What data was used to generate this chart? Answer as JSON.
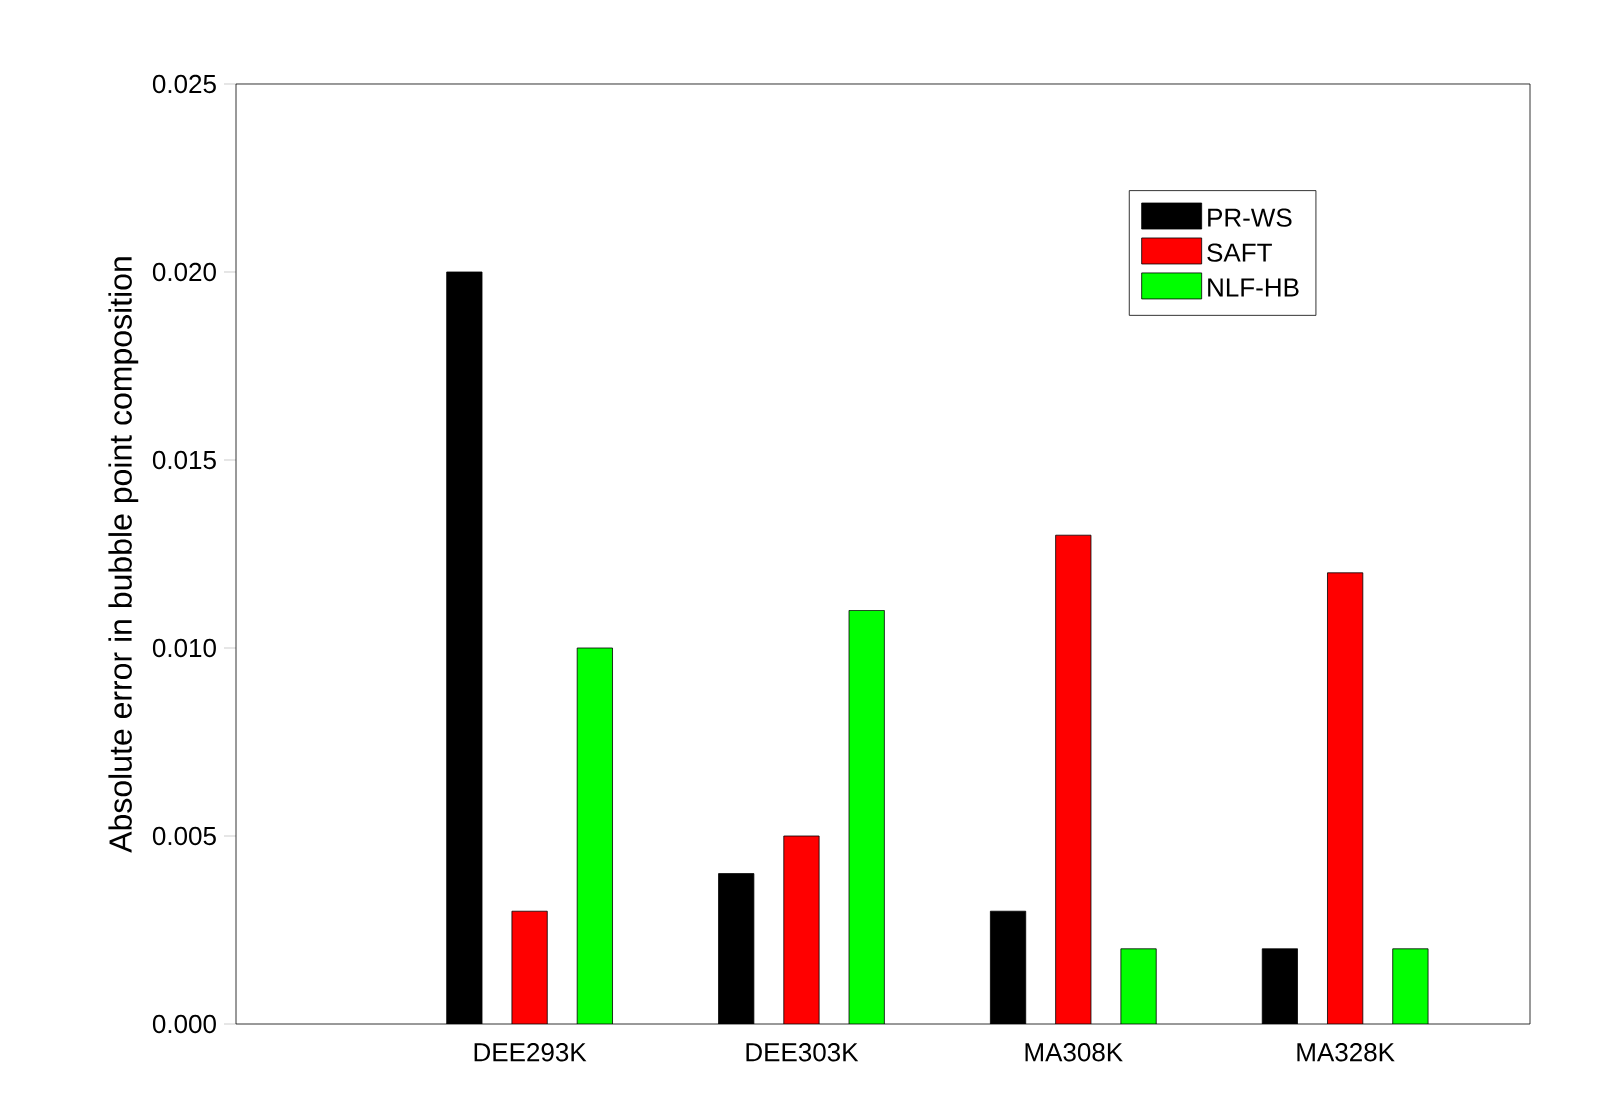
{
  "chart_data": {
    "type": "bar",
    "ylabel": "Absolute error in bubble point composition",
    "categories": [
      "DEE293K",
      "DEE303K",
      "MA308K",
      "MA328K"
    ],
    "series": [
      {
        "name": "PR-WS",
        "color": "#000000",
        "values": [
          0.02,
          0.004,
          0.003,
          0.002
        ]
      },
      {
        "name": "SAFT",
        "color": "#ff0000",
        "values": [
          0.003,
          0.005,
          0.013,
          0.012
        ]
      },
      {
        "name": "NLF-HB",
        "color": "#00ff00",
        "values": [
          0.01,
          0.011,
          0.002,
          0.002
        ]
      }
    ],
    "ylim": [
      0,
      0.025
    ],
    "yticks": [
      {
        "value": 0,
        "label": "0.000"
      },
      {
        "value": 0.005,
        "label": "0.005"
      },
      {
        "value": 0.01,
        "label": "0.010"
      },
      {
        "value": 0.015,
        "label": "0.015"
      },
      {
        "value": 0.02,
        "label": "0.020"
      },
      {
        "value": 0.025,
        "label": "0.025"
      }
    ],
    "grid": false,
    "legend": "top right"
  }
}
